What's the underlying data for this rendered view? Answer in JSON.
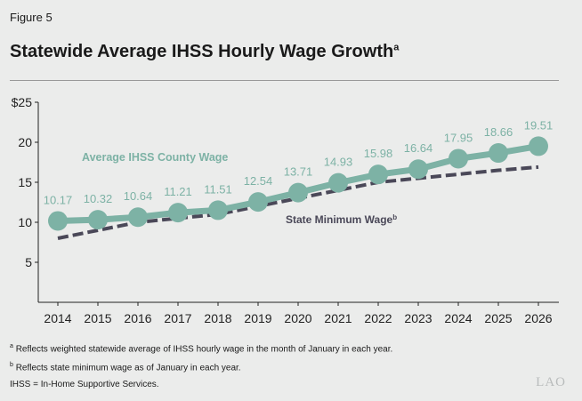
{
  "figure_label": "Figure 5",
  "title": "Statewide Average IHSS Hourly Wage Growth",
  "title_note_marker": "a",
  "chart_data": {
    "type": "line",
    "x": [
      2014,
      2015,
      2016,
      2017,
      2018,
      2019,
      2020,
      2021,
      2022,
      2023,
      2024,
      2025,
      2026
    ],
    "series": [
      {
        "name": "Average IHSS County Wage",
        "note_marker": "",
        "values": [
          10.17,
          10.32,
          10.64,
          11.21,
          11.51,
          12.54,
          13.71,
          14.93,
          15.98,
          16.64,
          17.95,
          18.66,
          19.51
        ],
        "data_labels": [
          "10.17",
          "10.32",
          "10.64",
          "11.21",
          "11.51",
          "12.54",
          "13.71",
          "14.93",
          "15.98",
          "16.64",
          "17.95",
          "18.66",
          "19.51"
        ],
        "color": "#7db2a5",
        "style": "solid-markers"
      },
      {
        "name": "State Minimum Wage",
        "note_marker": "b",
        "values": [
          8,
          9,
          10,
          10.5,
          11,
          12,
          13,
          14,
          15,
          15.5,
          16,
          16.5,
          16.9
        ],
        "color": "#4a4858",
        "style": "dashed"
      }
    ],
    "ylim": [
      0,
      25
    ],
    "yticks": [
      5,
      10,
      15,
      20,
      25
    ],
    "ytick_labels": [
      "5",
      "10",
      "15",
      "20",
      "$25"
    ],
    "grid": false
  },
  "footnotes": [
    {
      "marker": "a",
      "text": "Reflects weighted statewide average of IHSS hourly wage in the month of January in each year."
    },
    {
      "marker": "b",
      "text": "Reflects state minimum wage as of January in each year."
    },
    {
      "marker": "",
      "text": "IHSS = In-Home Supportive Services."
    }
  ],
  "logo": "LAO"
}
